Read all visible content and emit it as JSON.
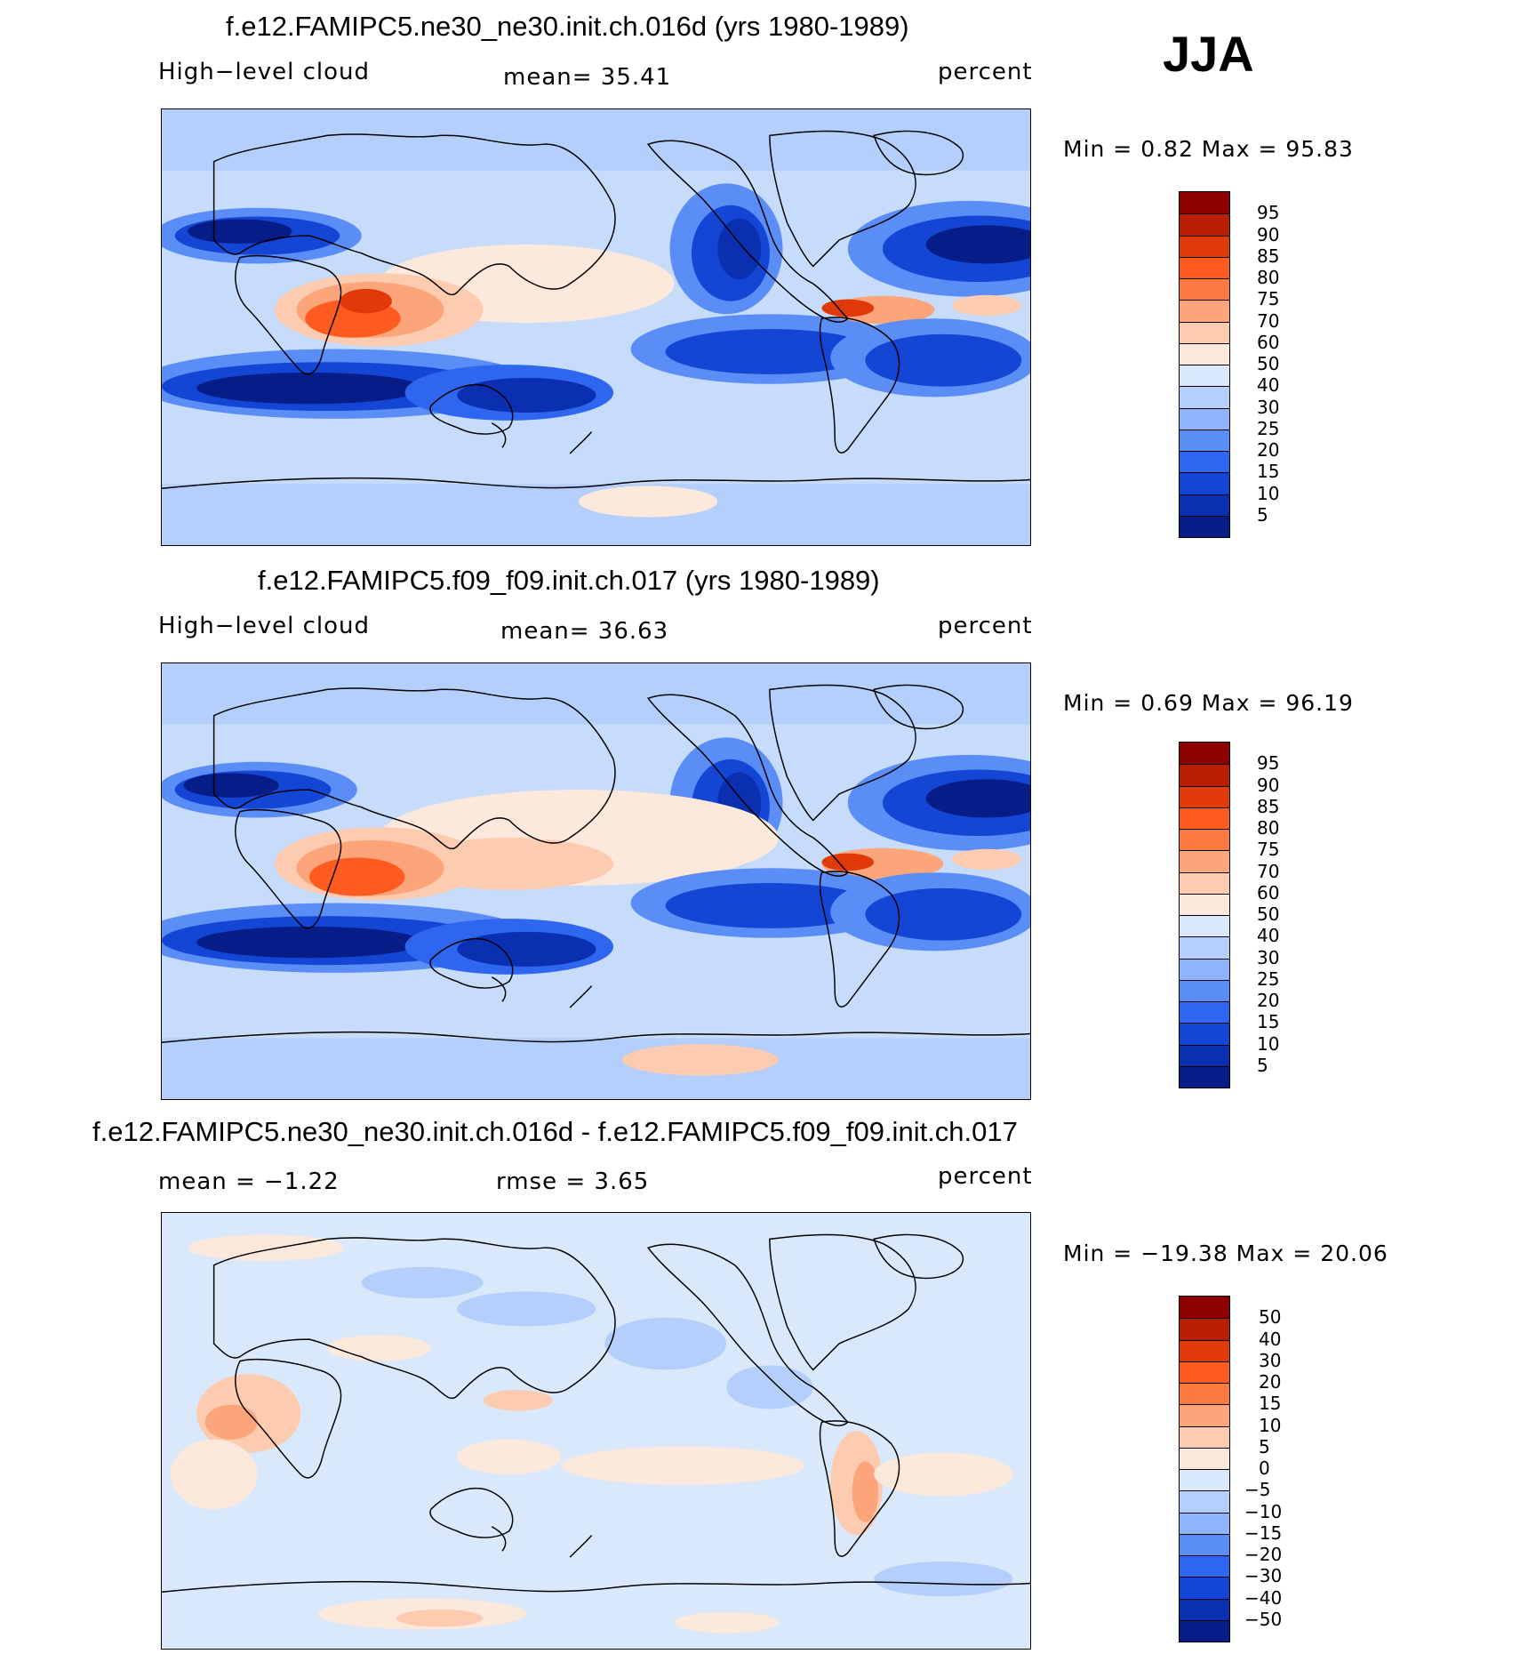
{
  "season": "JJA",
  "panels": [
    {
      "title": "f.e12.FAMIPC5.ne30_ne30.init.ch.016d (yrs 1980-1989)",
      "left_label": "High−level  cloud",
      "center_label": "mean=   35.41",
      "units": "percent",
      "minmax": "Min  =     0.82  Max  =    95.83",
      "colorbar": {
        "levels": [
          "95",
          "90",
          "85",
          "80",
          "75",
          "70",
          "60",
          "50",
          "40",
          "30",
          "25",
          "20",
          "15",
          "10",
          "5"
        ],
        "colors": [
          "#8c0000",
          "#b81f00",
          "#e03a0a",
          "#ff5a1f",
          "#ff7a40",
          "#fca47a",
          "#fccbb0",
          "#fde8dc",
          "#d9e8fb",
          "#b4cffb",
          "#8fb4fb",
          "#5a8df5",
          "#2f66f0",
          "#1446d6",
          "#0a2fb0",
          "#061c86"
        ]
      }
    },
    {
      "title": "f.e12.FAMIPC5.f09_f09.init.ch.017 (yrs 1980-1989)",
      "left_label": "High−level  cloud",
      "center_label": "mean=   36.63",
      "units": "percent",
      "minmax": "Min  =     0.69  Max  =    96.19",
      "colorbar": {
        "levels": [
          "95",
          "90",
          "85",
          "80",
          "75",
          "70",
          "60",
          "50",
          "40",
          "30",
          "25",
          "20",
          "15",
          "10",
          "5"
        ],
        "colors": [
          "#8c0000",
          "#b81f00",
          "#e03a0a",
          "#ff5a1f",
          "#ff7a40",
          "#fca47a",
          "#fccbb0",
          "#fde8dc",
          "#d9e8fb",
          "#b4cffb",
          "#8fb4fb",
          "#5a8df5",
          "#2f66f0",
          "#1446d6",
          "#0a2fb0",
          "#061c86"
        ]
      }
    },
    {
      "title": "f.e12.FAMIPC5.ne30_ne30.init.ch.016d - f.e12.FAMIPC5.f09_f09.init.ch.017",
      "left_label": "mean  =    −1.22",
      "center_label": "rmse  =      3.65",
      "units": "percent",
      "minmax": "Min  =  −19.38  Max  =    20.06",
      "colorbar": {
        "levels": [
          "50",
          "40",
          "30",
          "20",
          "15",
          "10",
          "5",
          "0",
          "−5",
          "−10",
          "−15",
          "−20",
          "−30",
          "−40",
          "−50"
        ],
        "colors": [
          "#8c0000",
          "#b81f00",
          "#e03a0a",
          "#ff5a1f",
          "#ff7a40",
          "#fca47a",
          "#fccbb0",
          "#fde8dc",
          "#d9e8fb",
          "#b4cffb",
          "#8fb4fb",
          "#5a8df5",
          "#2f66f0",
          "#1446d6",
          "#0a2fb0",
          "#061c86"
        ]
      }
    }
  ]
}
